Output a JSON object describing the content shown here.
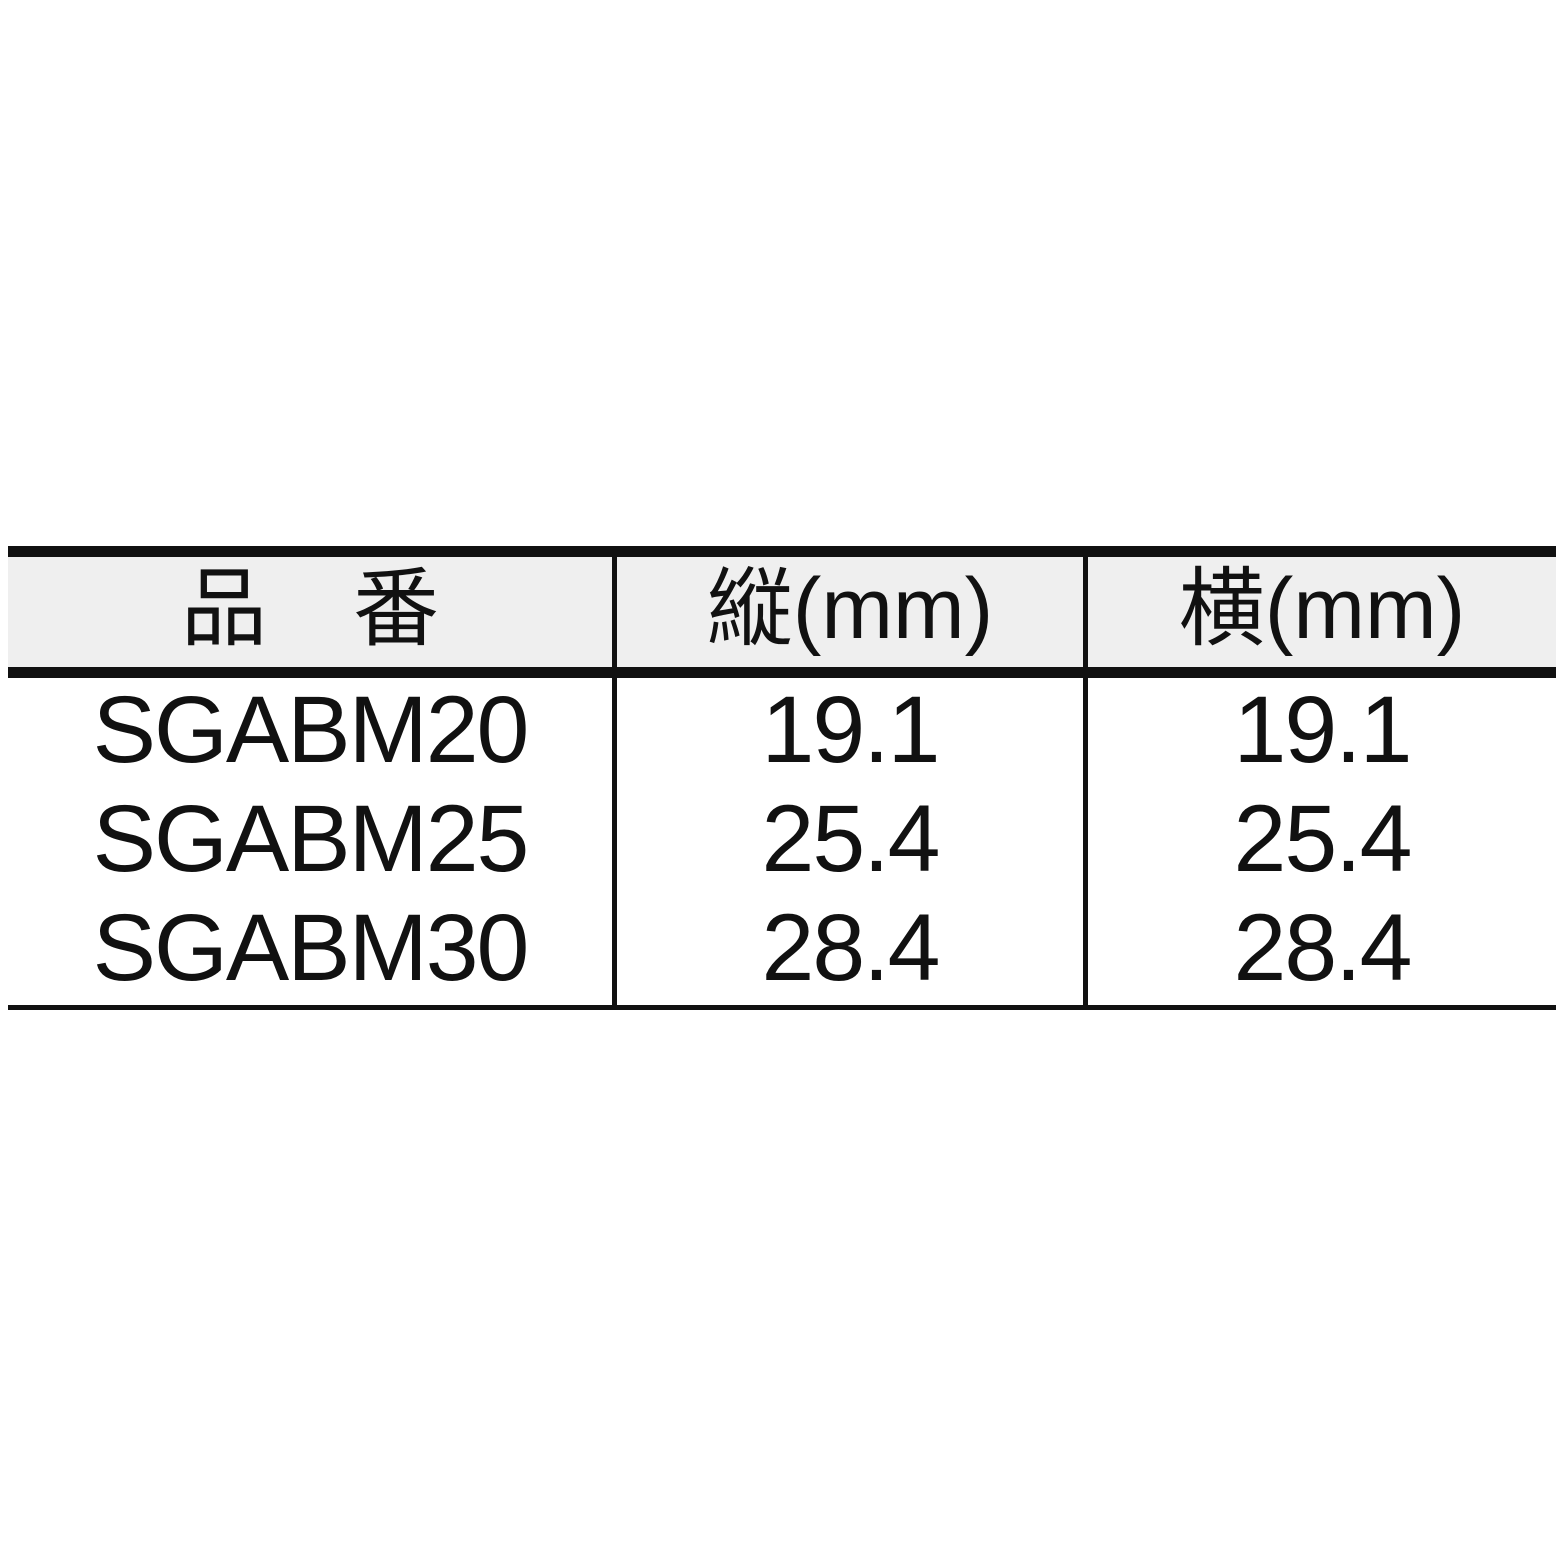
{
  "table": {
    "headers": [
      "品　番",
      "縦(mm)",
      "横(mm)"
    ],
    "rows": [
      {
        "part_no": "SGABM20",
        "height_mm": "19.1",
        "width_mm": "19.1"
      },
      {
        "part_no": "SGABM25",
        "height_mm": "25.4",
        "width_mm": "25.4"
      },
      {
        "part_no": "SGABM30",
        "height_mm": "28.4",
        "width_mm": "28.4"
      }
    ]
  },
  "colors": {
    "header_bg": "#efefef",
    "rule": "#111111",
    "text": "#111111",
    "page_bg": "#ffffff"
  }
}
